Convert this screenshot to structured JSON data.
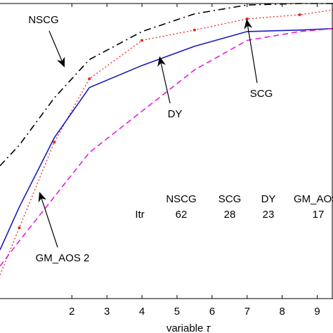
{
  "chart_data": {
    "type": "line",
    "xlabel_prefix": "variable ",
    "xlabel_symbol": "τ",
    "xlim": [
      -0.05,
      9.45
    ],
    "ylim": [
      0.0,
      1.0
    ],
    "xticks": [
      2,
      3,
      4,
      5,
      6,
      7,
      8,
      9
    ],
    "xtick_labels": [
      "2",
      "3",
      "4",
      "5",
      "6",
      "7",
      "8",
      "9"
    ],
    "series": [
      {
        "name": "NSCG",
        "color": "#000000",
        "dash": "10 5 2 5",
        "x": [
          -0.05,
          0.5,
          1.5,
          2.5,
          4.0,
          5.5,
          7.0,
          8.5,
          9.45
        ],
        "y": [
          0.45,
          0.52,
          0.68,
          0.81,
          0.905,
          0.965,
          0.995,
          1.0,
          1.0
        ]
      },
      {
        "name": "SCG",
        "color": "#e8281e",
        "dash": "2 3",
        "markers": true,
        "x": [
          -0.05,
          0.5,
          1.5,
          2.5,
          4.0,
          5.5,
          7.0,
          8.5,
          9.45
        ],
        "y": [
          0.08,
          0.24,
          0.53,
          0.745,
          0.875,
          0.91,
          0.948,
          0.962,
          0.978
        ]
      },
      {
        "name": "DY",
        "color": "#1a1abf",
        "dash": "",
        "x": [
          -0.05,
          0.5,
          1.5,
          2.5,
          4.0,
          5.5,
          7.0,
          8.5,
          9.45
        ],
        "y": [
          0.165,
          0.31,
          0.545,
          0.715,
          0.79,
          0.855,
          0.905,
          0.91,
          0.915
        ]
      },
      {
        "name": "GM_AOS 2",
        "color": "#e01ee0",
        "dash": "8 5",
        "x": [
          -0.05,
          0.5,
          1.5,
          2.5,
          4.0,
          5.5,
          7.0,
          8.5,
          9.45
        ],
        "y": [
          0.11,
          0.195,
          0.345,
          0.495,
          0.635,
          0.775,
          0.875,
          0.905,
          0.915
        ]
      }
    ],
    "annotations": [
      {
        "text": "NSCG",
        "color": "#000000"
      },
      {
        "text": "SCG",
        "color": "#000000"
      },
      {
        "text": "DY",
        "color": "#000000"
      },
      {
        "text": "GM_AOS 2",
        "color": "#000000"
      }
    ],
    "table": {
      "headers": [
        "NSCG",
        "SCG",
        "DY",
        "GM_AOS"
      ],
      "row_label": "Itr",
      "values": [
        "62",
        "28",
        "23",
        "17"
      ]
    }
  }
}
